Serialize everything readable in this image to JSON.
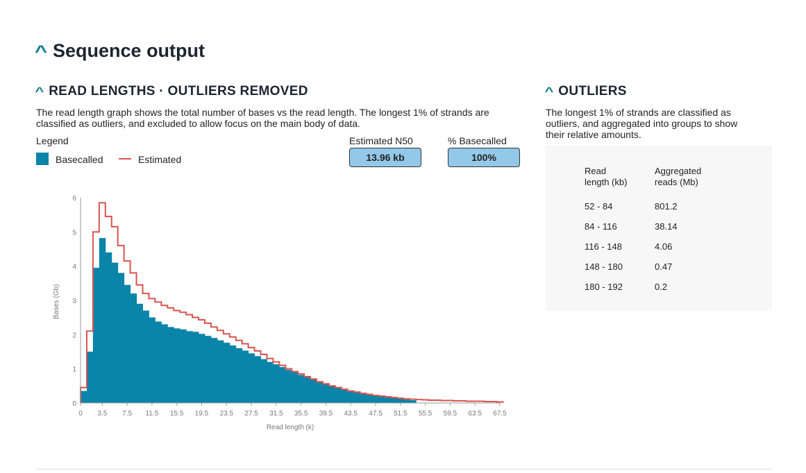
{
  "title": "Sequence output",
  "read_lengths": {
    "heading": "READ LENGTHS · OUTLIERS REMOVED",
    "description_line1": "The read length graph shows the total number of bases vs the read length. The longest 1% of strands are",
    "description_line2": "classified as outliers, and excluded to allow focus on the main body of data.",
    "legend_label": "Legend",
    "legend": [
      {
        "label": "Basecalled",
        "color": "#0a84a8"
      },
      {
        "label": "Estimated",
        "color": "#d9534f"
      }
    ],
    "n50_label": "Estimated N50",
    "n50_value": "13.96 kb",
    "basecalled_label": "% Basecalled",
    "basecalled_value": "100%"
  },
  "outliers": {
    "heading": "OUTLIERS",
    "description_line1": "The longest 1% of strands are classified as",
    "description_line2": "outliers, and aggregated into groups to show",
    "description_line3": "their relative amounts.",
    "col1_line1": "Read",
    "col1_line2": "length (kb)",
    "col2_line1": "Aggregated",
    "col2_line2": "reads (Mb)",
    "rows": [
      [
        "52 - 84",
        "801.2"
      ],
      [
        "84 - 116",
        "38.14"
      ],
      [
        "116 - 148",
        "4.06"
      ],
      [
        "148 - 180",
        "0.47"
      ],
      [
        "180 - 192",
        "0.2"
      ]
    ]
  },
  "chart_data": {
    "type": "histogram",
    "xlabel": "Read length (k)",
    "ylabel": "Bases (Gb)",
    "xlim": [
      0,
      67.5
    ],
    "ylim": [
      0,
      6
    ],
    "bin_width": 1,
    "xticks": [
      "0",
      "3.5",
      "7.5",
      "11.5",
      "15.5",
      "19.5",
      "23.5",
      "27.5",
      "31.5",
      "35.5",
      "39.5",
      "43.5",
      "47.5",
      "51.5",
      "55.5",
      "59.5",
      "63.5",
      "67.5"
    ],
    "yticks": [
      "0",
      "1",
      "2",
      "3",
      "4",
      "5",
      "6"
    ],
    "series": [
      {
        "name": "Basecalled",
        "style": "filled",
        "color": "#0a84a8",
        "values": [
          0.35,
          1.5,
          3.95,
          4.82,
          4.4,
          4.1,
          3.8,
          3.45,
          3.2,
          2.9,
          2.7,
          2.5,
          2.38,
          2.3,
          2.22,
          2.18,
          2.15,
          2.1,
          2.08,
          2.02,
          1.96,
          1.9,
          1.83,
          1.76,
          1.68,
          1.6,
          1.53,
          1.45,
          1.37,
          1.28,
          1.2,
          1.13,
          1.05,
          0.97,
          0.9,
          0.82,
          0.75,
          0.68,
          0.62,
          0.56,
          0.5,
          0.45,
          0.4,
          0.36,
          0.32,
          0.28,
          0.25,
          0.22,
          0.2,
          0.18,
          0.15,
          0.13,
          0.1,
          0.08
        ]
      },
      {
        "name": "Estimated",
        "style": "step-line",
        "color": "#d9534f",
        "values": [
          0.45,
          2.1,
          5.0,
          5.85,
          5.45,
          5.15,
          4.6,
          4.15,
          3.8,
          3.45,
          3.2,
          3.05,
          2.95,
          2.85,
          2.78,
          2.7,
          2.65,
          2.58,
          2.5,
          2.43,
          2.33,
          2.22,
          2.12,
          2.02,
          1.93,
          1.83,
          1.73,
          1.62,
          1.52,
          1.42,
          1.3,
          1.2,
          1.1,
          1.0,
          0.92,
          0.85,
          0.77,
          0.7,
          0.62,
          0.56,
          0.5,
          0.45,
          0.4,
          0.35,
          0.32,
          0.28,
          0.25,
          0.22,
          0.2,
          0.18,
          0.16,
          0.14,
          0.12,
          0.11,
          0.1,
          0.09,
          0.08,
          0.08,
          0.07,
          0.07,
          0.06,
          0.06,
          0.05,
          0.05,
          0.05,
          0.04,
          0.04,
          0.03
        ]
      }
    ]
  }
}
